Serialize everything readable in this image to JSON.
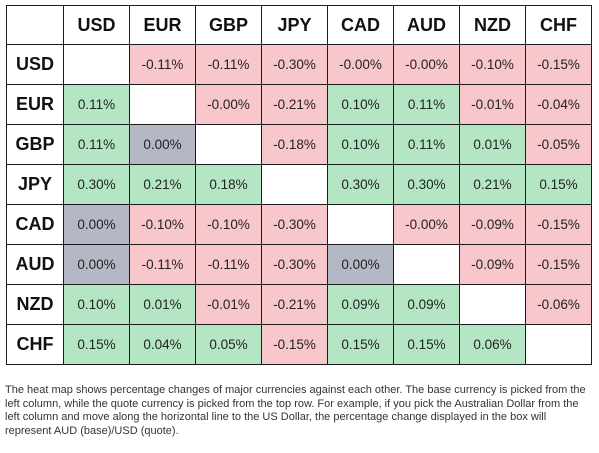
{
  "colors": {
    "positive": "#b5e6c3",
    "negative": "#f7c7cc",
    "zero": "#b3b8c4",
    "empty": "#ffffff"
  },
  "currencies": [
    "USD",
    "EUR",
    "GBP",
    "JPY",
    "CAD",
    "AUD",
    "NZD",
    "CHF"
  ],
  "rows": [
    {
      "base": "USD",
      "cells": [
        "",
        "-0.11%",
        "-0.11%",
        "-0.30%",
        "-0.00%",
        "-0.00%",
        "-0.10%",
        "-0.15%"
      ]
    },
    {
      "base": "EUR",
      "cells": [
        "0.11%",
        "",
        "-0.00%",
        "-0.21%",
        "0.10%",
        "0.11%",
        "-0.01%",
        "-0.04%"
      ]
    },
    {
      "base": "GBP",
      "cells": [
        "0.11%",
        "0.00%",
        "",
        "-0.18%",
        "0.10%",
        "0.11%",
        "0.01%",
        "-0.05%"
      ]
    },
    {
      "base": "JPY",
      "cells": [
        "0.30%",
        "0.21%",
        "0.18%",
        "",
        "0.30%",
        "0.30%",
        "0.21%",
        "0.15%"
      ]
    },
    {
      "base": "CAD",
      "cells": [
        "0.00%",
        "-0.10%",
        "-0.10%",
        "-0.30%",
        "",
        "-0.00%",
        "-0.09%",
        "-0.15%"
      ]
    },
    {
      "base": "AUD",
      "cells": [
        "0.00%",
        "-0.11%",
        "-0.11%",
        "-0.30%",
        "0.00%",
        "",
        "-0.09%",
        "-0.15%"
      ]
    },
    {
      "base": "NZD",
      "cells": [
        "0.10%",
        "0.01%",
        "-0.01%",
        "-0.21%",
        "0.09%",
        "0.09%",
        "",
        "-0.06%"
      ]
    },
    {
      "base": "CHF",
      "cells": [
        "0.15%",
        "0.04%",
        "0.05%",
        "-0.15%",
        "0.15%",
        "0.15%",
        "0.06%",
        ""
      ]
    }
  ],
  "caption": "The heat map shows percentage changes of major currencies against each other. The base currency is picked from the left column, while the quote currency is picked from the top row. For example, if you pick the Australian Dollar from the left column and move along the horizontal line to the US Dollar, the percentage change displayed in the box will represent AUD (base)/USD (quote)."
}
